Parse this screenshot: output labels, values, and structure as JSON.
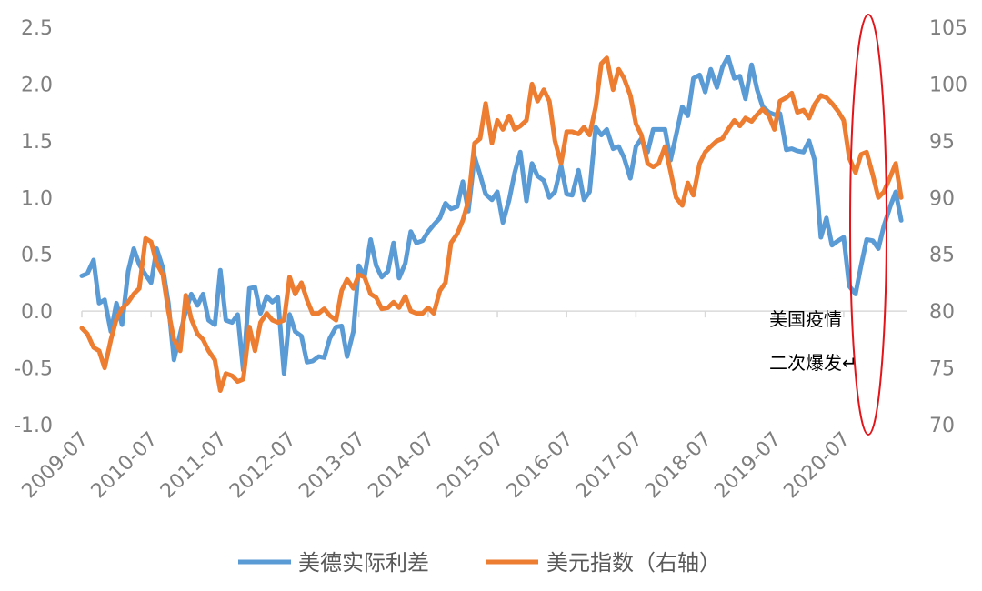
{
  "colors": {
    "real_rate_spread": "#5b9bd5",
    "dollar_index": "#ed7d31",
    "highlight": "#e3151a",
    "axis": "#d9d9d9",
    "tick_text": "#7f7f7f"
  },
  "chart_data": {
    "type": "line",
    "title": "",
    "xlabel": "",
    "ylabel": "",
    "x_tick_labels": [
      "2009-07",
      "2010-07",
      "2011-07",
      "2012-07",
      "2013-07",
      "2014-07",
      "2015-07",
      "2016-07",
      "2017-07",
      "2018-07",
      "2019-07",
      "2020-07"
    ],
    "y_left_ticks": [
      "2.5",
      "2.0",
      "1.5",
      "1.0",
      "0.5",
      "0.0",
      "-0.5",
      "-1.0"
    ],
    "y_right_ticks": [
      "105",
      "100",
      "95",
      "90",
      "85",
      "80",
      "75",
      "70"
    ],
    "ylim_left": [
      -1.0,
      2.5
    ],
    "ylim_right": [
      70,
      105
    ],
    "x_range": [
      2009.5,
      2021.42
    ],
    "grid": false,
    "legend_position": "bottom",
    "series": [
      {
        "name": "美德实际利差",
        "axis": "left",
        "points": [
          [
            2009.5,
            0.31
          ],
          [
            2009.58,
            0.33
          ],
          [
            2009.67,
            0.45
          ],
          [
            2009.75,
            0.07
          ],
          [
            2009.83,
            0.1
          ],
          [
            2009.92,
            -0.18
          ],
          [
            2010.0,
            0.07
          ],
          [
            2010.08,
            -0.12
          ],
          [
            2010.17,
            0.35
          ],
          [
            2010.25,
            0.55
          ],
          [
            2010.33,
            0.41
          ],
          [
            2010.42,
            0.32
          ],
          [
            2010.5,
            0.25
          ],
          [
            2010.58,
            0.55
          ],
          [
            2010.67,
            0.38
          ],
          [
            2010.75,
            0.07
          ],
          [
            2010.83,
            -0.43
          ],
          [
            2010.92,
            -0.2
          ],
          [
            2011.0,
            0.0
          ],
          [
            2011.08,
            0.15
          ],
          [
            2011.17,
            0.05
          ],
          [
            2011.25,
            0.15
          ],
          [
            2011.33,
            -0.08
          ],
          [
            2011.42,
            -0.12
          ],
          [
            2011.5,
            0.36
          ],
          [
            2011.58,
            -0.08
          ],
          [
            2011.67,
            -0.1
          ],
          [
            2011.75,
            -0.03
          ],
          [
            2011.83,
            -0.52
          ],
          [
            2011.92,
            0.2
          ],
          [
            2012.0,
            0.21
          ],
          [
            2012.08,
            -0.02
          ],
          [
            2012.17,
            0.13
          ],
          [
            2012.25,
            0.08
          ],
          [
            2012.33,
            0.12
          ],
          [
            2012.42,
            -0.55
          ],
          [
            2012.5,
            -0.03
          ],
          [
            2012.58,
            -0.18
          ],
          [
            2012.67,
            -0.22
          ],
          [
            2012.75,
            -0.45
          ],
          [
            2012.83,
            -0.44
          ],
          [
            2012.92,
            -0.4
          ],
          [
            2013.0,
            -0.41
          ],
          [
            2013.08,
            -0.24
          ],
          [
            2013.17,
            -0.14
          ],
          [
            2013.25,
            -0.13
          ],
          [
            2013.33,
            -0.4
          ],
          [
            2013.42,
            -0.18
          ],
          [
            2013.5,
            0.4
          ],
          [
            2013.58,
            0.3
          ],
          [
            2013.67,
            0.63
          ],
          [
            2013.75,
            0.4
          ],
          [
            2013.83,
            0.3
          ],
          [
            2013.92,
            0.35
          ],
          [
            2014.0,
            0.6
          ],
          [
            2014.08,
            0.29
          ],
          [
            2014.17,
            0.42
          ],
          [
            2014.25,
            0.7
          ],
          [
            2014.33,
            0.6
          ],
          [
            2014.42,
            0.62
          ],
          [
            2014.5,
            0.7
          ],
          [
            2014.58,
            0.76
          ],
          [
            2014.67,
            0.82
          ],
          [
            2014.75,
            0.95
          ],
          [
            2014.83,
            0.9
          ],
          [
            2014.92,
            0.92
          ],
          [
            2015.0,
            1.14
          ],
          [
            2015.08,
            0.88
          ],
          [
            2015.17,
            1.36
          ],
          [
            2015.25,
            1.2
          ],
          [
            2015.33,
            1.03
          ],
          [
            2015.42,
            0.98
          ],
          [
            2015.5,
            1.05
          ],
          [
            2015.58,
            0.78
          ],
          [
            2015.67,
            0.98
          ],
          [
            2015.75,
            1.22
          ],
          [
            2015.83,
            1.4
          ],
          [
            2015.92,
            0.97
          ],
          [
            2016.0,
            1.3
          ],
          [
            2016.08,
            1.19
          ],
          [
            2016.17,
            1.15
          ],
          [
            2016.25,
            1.0
          ],
          [
            2016.33,
            1.05
          ],
          [
            2016.42,
            1.28
          ],
          [
            2016.5,
            1.03
          ],
          [
            2016.58,
            1.02
          ],
          [
            2016.67,
            1.24
          ],
          [
            2016.75,
            0.98
          ],
          [
            2016.83,
            1.05
          ],
          [
            2016.92,
            1.62
          ],
          [
            2017.0,
            1.55
          ],
          [
            2017.08,
            1.6
          ],
          [
            2017.17,
            1.43
          ],
          [
            2017.25,
            1.45
          ],
          [
            2017.33,
            1.35
          ],
          [
            2017.42,
            1.17
          ],
          [
            2017.5,
            1.45
          ],
          [
            2017.58,
            1.52
          ],
          [
            2017.67,
            1.4
          ],
          [
            2017.75,
            1.6
          ],
          [
            2017.83,
            1.6
          ],
          [
            2017.92,
            1.6
          ],
          [
            2018.0,
            1.33
          ],
          [
            2018.08,
            1.55
          ],
          [
            2018.17,
            1.8
          ],
          [
            2018.25,
            1.72
          ],
          [
            2018.33,
            2.05
          ],
          [
            2018.42,
            2.08
          ],
          [
            2018.5,
            1.93
          ],
          [
            2018.58,
            2.13
          ],
          [
            2018.67,
            1.97
          ],
          [
            2018.75,
            2.15
          ],
          [
            2018.83,
            2.24
          ],
          [
            2018.92,
            2.05
          ],
          [
            2019.0,
            2.07
          ],
          [
            2019.08,
            1.87
          ],
          [
            2019.17,
            2.17
          ],
          [
            2019.25,
            1.95
          ],
          [
            2019.33,
            1.8
          ],
          [
            2019.42,
            1.75
          ],
          [
            2019.5,
            1.73
          ],
          [
            2019.58,
            1.74
          ],
          [
            2019.67,
            1.42
          ],
          [
            2019.75,
            1.43
          ],
          [
            2019.83,
            1.41
          ],
          [
            2019.92,
            1.4
          ],
          [
            2020.0,
            1.5
          ],
          [
            2020.08,
            1.33
          ],
          [
            2020.17,
            0.65
          ],
          [
            2020.25,
            0.82
          ],
          [
            2020.33,
            0.58
          ],
          [
            2020.42,
            0.62
          ],
          [
            2020.5,
            0.65
          ],
          [
            2020.58,
            0.22
          ],
          [
            2020.67,
            0.15
          ],
          [
            2020.75,
            0.4
          ],
          [
            2020.83,
            0.63
          ],
          [
            2020.92,
            0.62
          ],
          [
            2021.0,
            0.55
          ],
          [
            2021.08,
            0.75
          ],
          [
            2021.17,
            0.92
          ],
          [
            2021.25,
            1.05
          ],
          [
            2021.33,
            0.8
          ]
        ]
      },
      {
        "name": "美元指数（右轴）",
        "axis": "right",
        "points": [
          [
            2009.5,
            78.5
          ],
          [
            2009.58,
            78.0
          ],
          [
            2009.67,
            76.8
          ],
          [
            2009.75,
            76.5
          ],
          [
            2009.83,
            75.0
          ],
          [
            2009.92,
            77.5
          ],
          [
            2010.0,
            79.3
          ],
          [
            2010.08,
            80.2
          ],
          [
            2010.17,
            80.8
          ],
          [
            2010.25,
            81.5
          ],
          [
            2010.33,
            82.0
          ],
          [
            2010.42,
            86.4
          ],
          [
            2010.5,
            86.1
          ],
          [
            2010.58,
            84.2
          ],
          [
            2010.67,
            83.2
          ],
          [
            2010.75,
            80.0
          ],
          [
            2010.83,
            77.5
          ],
          [
            2010.92,
            76.5
          ],
          [
            2010.92,
            76.5
          ],
          [
            2011.0,
            81.4
          ],
          [
            2011.08,
            79.3
          ],
          [
            2011.17,
            78.0
          ],
          [
            2011.25,
            77.5
          ],
          [
            2011.33,
            76.5
          ],
          [
            2011.42,
            75.7
          ],
          [
            2011.5,
            73.0
          ],
          [
            2011.58,
            74.5
          ],
          [
            2011.67,
            74.3
          ],
          [
            2011.75,
            73.8
          ],
          [
            2011.83,
            74.0
          ],
          [
            2011.92,
            78.6
          ],
          [
            2012.0,
            76.5
          ],
          [
            2012.08,
            79.0
          ],
          [
            2012.17,
            79.8
          ],
          [
            2012.25,
            79.2
          ],
          [
            2012.33,
            79.0
          ],
          [
            2012.42,
            79.2
          ],
          [
            2012.5,
            83.0
          ],
          [
            2012.58,
            81.5
          ],
          [
            2012.67,
            82.5
          ],
          [
            2012.75,
            81.0
          ],
          [
            2012.83,
            79.8
          ],
          [
            2012.92,
            79.8
          ],
          [
            2013.0,
            80.2
          ],
          [
            2013.08,
            79.6
          ],
          [
            2013.17,
            79.2
          ],
          [
            2013.25,
            81.8
          ],
          [
            2013.33,
            82.8
          ],
          [
            2013.42,
            82.0
          ],
          [
            2013.5,
            83.2
          ],
          [
            2013.58,
            83.0
          ],
          [
            2013.67,
            81.5
          ],
          [
            2013.75,
            81.2
          ],
          [
            2013.83,
            80.2
          ],
          [
            2013.92,
            80.3
          ],
          [
            2014.0,
            80.8
          ],
          [
            2014.08,
            80.3
          ],
          [
            2014.17,
            81.3
          ],
          [
            2014.25,
            80.0
          ],
          [
            2014.33,
            79.8
          ],
          [
            2014.42,
            79.8
          ],
          [
            2014.5,
            80.3
          ],
          [
            2014.58,
            79.8
          ],
          [
            2014.67,
            81.8
          ],
          [
            2014.75,
            82.5
          ],
          [
            2014.83,
            86.0
          ],
          [
            2014.92,
            86.8
          ],
          [
            2015.0,
            88.0
          ],
          [
            2015.08,
            89.7
          ],
          [
            2015.17,
            94.8
          ],
          [
            2015.25,
            95.2
          ],
          [
            2015.33,
            98.3
          ],
          [
            2015.42,
            94.8
          ],
          [
            2015.5,
            96.8
          ],
          [
            2015.58,
            96.0
          ],
          [
            2015.67,
            97.2
          ],
          [
            2015.75,
            96.0
          ],
          [
            2015.83,
            96.3
          ],
          [
            2015.92,
            96.8
          ],
          [
            2016.0,
            100.0
          ],
          [
            2016.08,
            98.5
          ],
          [
            2016.17,
            99.5
          ],
          [
            2016.25,
            98.5
          ],
          [
            2016.33,
            95.0
          ],
          [
            2016.42,
            93.0
          ],
          [
            2016.5,
            95.8
          ],
          [
            2016.58,
            95.8
          ],
          [
            2016.67,
            95.6
          ],
          [
            2016.75,
            96.2
          ],
          [
            2016.83,
            95.5
          ],
          [
            2016.92,
            98.0
          ],
          [
            2017.0,
            101.8
          ],
          [
            2017.08,
            102.3
          ],
          [
            2017.17,
            99.5
          ],
          [
            2017.25,
            101.3
          ],
          [
            2017.33,
            100.5
          ],
          [
            2017.42,
            99.0
          ],
          [
            2017.5,
            96.5
          ],
          [
            2017.58,
            95.5
          ],
          [
            2017.67,
            93.0
          ],
          [
            2017.75,
            92.7
          ],
          [
            2017.83,
            93.0
          ],
          [
            2017.92,
            94.5
          ],
          [
            2018.0,
            92.3
          ],
          [
            2018.08,
            90.0
          ],
          [
            2018.17,
            89.3
          ],
          [
            2018.25,
            91.3
          ],
          [
            2018.33,
            90.2
          ],
          [
            2018.42,
            93.0
          ],
          [
            2018.5,
            94.0
          ],
          [
            2018.58,
            94.5
          ],
          [
            2018.67,
            95.0
          ],
          [
            2018.75,
            95.2
          ],
          [
            2018.83,
            96.0
          ],
          [
            2018.92,
            96.8
          ],
          [
            2019.0,
            96.3
          ],
          [
            2019.08,
            97.0
          ],
          [
            2019.17,
            96.7
          ],
          [
            2019.25,
            97.3
          ],
          [
            2019.33,
            97.8
          ],
          [
            2019.42,
            97.2
          ],
          [
            2019.5,
            96.0
          ],
          [
            2019.58,
            98.5
          ],
          [
            2019.67,
            98.8
          ],
          [
            2019.75,
            99.2
          ],
          [
            2019.83,
            97.5
          ],
          [
            2019.92,
            97.7
          ],
          [
            2020.0,
            97.0
          ],
          [
            2020.08,
            98.2
          ],
          [
            2020.17,
            99.0
          ],
          [
            2020.25,
            98.8
          ],
          [
            2020.33,
            98.3
          ],
          [
            2020.42,
            97.6
          ],
          [
            2020.5,
            96.8
          ],
          [
            2020.58,
            93.5
          ],
          [
            2020.67,
            92.2
          ],
          [
            2020.75,
            93.8
          ],
          [
            2020.83,
            94.0
          ],
          [
            2020.92,
            92.0
          ],
          [
            2021.0,
            90.0
          ],
          [
            2021.08,
            90.5
          ],
          [
            2021.17,
            91.8
          ],
          [
            2021.25,
            93.0
          ],
          [
            2021.33,
            90.0
          ]
        ]
      }
    ],
    "annotation": {
      "line1": "美国疫情",
      "line2": "二次爆发↵"
    }
  }
}
